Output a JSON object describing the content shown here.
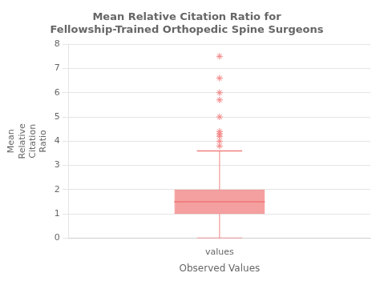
{
  "chart_data": {
    "type": "box",
    "title": "Mean Relative Citation Ratio for\nFellowship-Trained Orthopedic Spine Surgeons",
    "xlabel": "Observed Values",
    "ylabel": "Mean\nRelative\nCitation\nRatio",
    "categories": [
      "values"
    ],
    "boxes": [
      {
        "q1": 1.0,
        "median": 1.5,
        "q3": 2.0,
        "whisker_low": 0.0,
        "whisker_high": 3.6,
        "outliers": [
          3.8,
          4.0,
          4.2,
          4.3,
          4.4,
          5.0,
          5.7,
          6.0,
          6.6,
          7.5
        ]
      }
    ],
    "color": "#F28080",
    "ylim": [
      0,
      8
    ],
    "yticks": [
      0,
      1,
      2,
      3,
      4,
      5,
      6,
      7,
      8
    ],
    "grid": true
  }
}
